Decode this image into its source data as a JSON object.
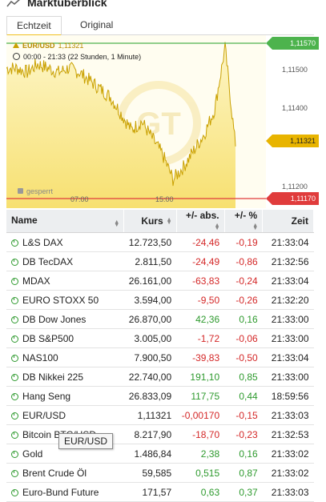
{
  "header": {
    "title": "Marktuberblick",
    "icon": "chart-line-icon"
  },
  "tabs": [
    {
      "label": "Echtzeit",
      "active": true
    },
    {
      "label": "Original",
      "active": false
    }
  ],
  "chart": {
    "symbol": "EUR/USD",
    "last_value": "1,11321",
    "time_range": "00:00 - 21:33",
    "duration": "(22 Stunden, 1 Minute)",
    "locked_label": "gesperrt",
    "watermark": "GT",
    "high_tag": "1,11570",
    "current_tag": "1,11321",
    "low_tag": "1,11170",
    "y_ticks": [
      "1,11500",
      "1,11400",
      "1,11200"
    ],
    "x_ticks": [
      "07:00",
      "15:00"
    ],
    "colors": {
      "fill": "#fbeea0",
      "line": "#c9a000",
      "high": "#4db34d",
      "low": "#e03c3c"
    }
  },
  "chart_data": {
    "type": "area",
    "title": "EUR/USD",
    "xlabel": "",
    "ylabel": "",
    "x": [
      "00:00",
      "01:00",
      "02:00",
      "03:00",
      "04:00",
      "05:00",
      "06:00",
      "07:00",
      "08:00",
      "09:00",
      "10:00",
      "11:00",
      "12:00",
      "13:00",
      "14:00",
      "15:00",
      "16:00",
      "17:00",
      "18:00",
      "19:00",
      "20:00",
      "21:00",
      "21:33"
    ],
    "series": [
      {
        "values": [
          1.1151,
          1.1151,
          1.115,
          1.1152,
          1.1151,
          1.115,
          1.1151,
          1.115,
          1.1148,
          1.1146,
          1.1144,
          1.114,
          1.1136,
          1.1138,
          1.1134,
          1.113,
          1.1124,
          1.1127,
          1.1131,
          1.1135,
          1.1141,
          1.1156,
          1.1132
        ]
      }
    ],
    "ylim": [
      1.1117,
      1.1159
    ],
    "grid": false
  },
  "table": {
    "headers": {
      "name": "Name",
      "kurs": "Kurs",
      "abs": "+/- abs.",
      "pct": "+/- %",
      "zeit": "Zeit"
    },
    "rows": [
      {
        "name": "L&S DAX",
        "kurs": "12.723,50",
        "abs": "-24,46",
        "pct": "-0,19",
        "zeit": "21:33:04",
        "trend": "neg"
      },
      {
        "name": "DB TecDAX",
        "kurs": "2.811,50",
        "abs": "-24,49",
        "pct": "-0,86",
        "zeit": "21:32:56",
        "trend": "neg"
      },
      {
        "name": "MDAX",
        "kurs": "26.161,00",
        "abs": "-63,83",
        "pct": "-0,24",
        "zeit": "21:33:04",
        "trend": "neg"
      },
      {
        "name": "EURO STOXX 50",
        "kurs": "3.594,00",
        "abs": "-9,50",
        "pct": "-0,26",
        "zeit": "21:32:20",
        "trend": "neg"
      },
      {
        "name": "DB Dow Jones",
        "kurs": "26.870,00",
        "abs": "42,36",
        "pct": "0,16",
        "zeit": "21:33:00",
        "trend": "pos"
      },
      {
        "name": "DB S&P500",
        "kurs": "3.005,00",
        "abs": "-1,72",
        "pct": "-0,06",
        "zeit": "21:33:00",
        "trend": "neg"
      },
      {
        "name": "NAS100",
        "kurs": "7.900,50",
        "abs": "-39,83",
        "pct": "-0,50",
        "zeit": "21:33:04",
        "trend": "neg"
      },
      {
        "name": "DB Nikkei 225",
        "kurs": "22.740,00",
        "abs": "191,10",
        "pct": "0,85",
        "zeit": "21:33:00",
        "trend": "pos"
      },
      {
        "name": "Hang Seng",
        "kurs": "26.833,09",
        "abs": "117,75",
        "pct": "0,44",
        "zeit": "18:59:56",
        "trend": "pos"
      },
      {
        "name": "EUR/USD",
        "kurs": "1,11321",
        "abs": "-0,00170",
        "pct": "-0,15",
        "zeit": "21:33:03",
        "trend": "neg"
      },
      {
        "name": "Bitcoin BTC/USD",
        "kurs": "8.217,90",
        "abs": "-18,70",
        "pct": "-0,23",
        "zeit": "21:32:53",
        "trend": "neg"
      },
      {
        "name": "Gold",
        "kurs": "1.486,84",
        "abs": "2,38",
        "pct": "0,16",
        "zeit": "21:33:02",
        "trend": "pos"
      },
      {
        "name": "Brent Crude Öl",
        "kurs": "59,585",
        "abs": "0,515",
        "pct": "0,87",
        "zeit": "21:33:02",
        "trend": "pos"
      },
      {
        "name": "Euro-Bund Future",
        "kurs": "171,57",
        "abs": "0,63",
        "pct": "0,37",
        "zeit": "21:33:03",
        "trend": "pos"
      }
    ]
  },
  "tooltip": {
    "text": "EUR/USD"
  }
}
